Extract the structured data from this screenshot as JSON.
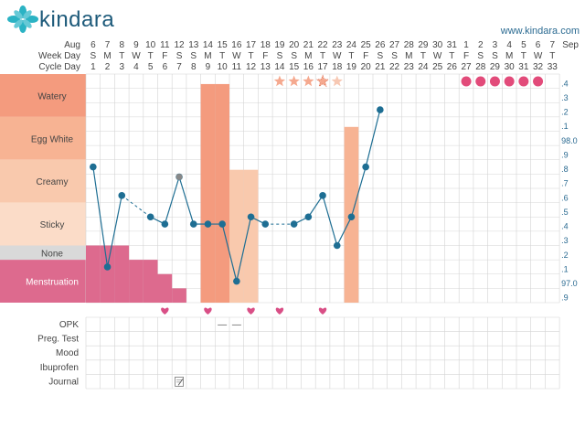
{
  "brand": {
    "name": "kindara",
    "logo_icon": "kindara-flower-icon"
  },
  "site_url": "www.kindara.com",
  "header": {
    "month_start": "Aug",
    "month_end": "Sep",
    "row_labels": [
      "Aug",
      "Week Day",
      "Cycle Day"
    ],
    "days": [
      {
        "date": "6",
        "weekday": "S",
        "cycle_day": "1"
      },
      {
        "date": "7",
        "weekday": "M",
        "cycle_day": "2"
      },
      {
        "date": "8",
        "weekday": "T",
        "cycle_day": "3"
      },
      {
        "date": "9",
        "weekday": "W",
        "cycle_day": "4"
      },
      {
        "date": "10",
        "weekday": "T",
        "cycle_day": "5"
      },
      {
        "date": "11",
        "weekday": "F",
        "cycle_day": "6"
      },
      {
        "date": "12",
        "weekday": "S",
        "cycle_day": "7"
      },
      {
        "date": "13",
        "weekday": "S",
        "cycle_day": "8"
      },
      {
        "date": "14",
        "weekday": "M",
        "cycle_day": "9"
      },
      {
        "date": "15",
        "weekday": "T",
        "cycle_day": "10"
      },
      {
        "date": "16",
        "weekday": "W",
        "cycle_day": "11"
      },
      {
        "date": "17",
        "weekday": "T",
        "cycle_day": "12"
      },
      {
        "date": "18",
        "weekday": "F",
        "cycle_day": "13"
      },
      {
        "date": "19",
        "weekday": "S",
        "cycle_day": "14"
      },
      {
        "date": "20",
        "weekday": "S",
        "cycle_day": "15"
      },
      {
        "date": "21",
        "weekday": "M",
        "cycle_day": "16"
      },
      {
        "date": "22",
        "weekday": "T",
        "cycle_day": "17"
      },
      {
        "date": "23",
        "weekday": "W",
        "cycle_day": "18"
      },
      {
        "date": "24",
        "weekday": "T",
        "cycle_day": "19"
      },
      {
        "date": "25",
        "weekday": "F",
        "cycle_day": "20"
      },
      {
        "date": "26",
        "weekday": "S",
        "cycle_day": "21"
      },
      {
        "date": "27",
        "weekday": "S",
        "cycle_day": "22"
      },
      {
        "date": "28",
        "weekday": "M",
        "cycle_day": "23"
      },
      {
        "date": "29",
        "weekday": "T",
        "cycle_day": "24"
      },
      {
        "date": "30",
        "weekday": "W",
        "cycle_day": "25"
      },
      {
        "date": "31",
        "weekday": "T",
        "cycle_day": "26"
      },
      {
        "date": "1",
        "weekday": "F",
        "cycle_day": "27"
      },
      {
        "date": "2",
        "weekday": "S",
        "cycle_day": "28"
      },
      {
        "date": "3",
        "weekday": "S",
        "cycle_day": "29"
      },
      {
        "date": "4",
        "weekday": "M",
        "cycle_day": "30"
      },
      {
        "date": "5",
        "weekday": "T",
        "cycle_day": "31"
      },
      {
        "date": "6",
        "weekday": "W",
        "cycle_day": "32"
      },
      {
        "date": "7",
        "weekday": "T",
        "cycle_day": "33"
      }
    ]
  },
  "fluid_categories": [
    {
      "key": "watery",
      "label": "Watery",
      "color": "#f49b7e"
    },
    {
      "key": "egg_white",
      "label": "Egg White",
      "color": "#f7b393"
    },
    {
      "key": "creamy",
      "label": "Creamy",
      "color": "#f9c9ad"
    },
    {
      "key": "sticky",
      "label": "Sticky",
      "color": "#fbdcc8"
    },
    {
      "key": "none",
      "label": "None",
      "color": "#d9d9d9"
    },
    {
      "key": "menstruation",
      "label": "Menstruation",
      "color": "#dd6a8e"
    }
  ],
  "temp_axis_labels": [
    ".4",
    ".3",
    ".2",
    ".1",
    "98.0",
    ".9",
    ".8",
    ".7",
    ".6",
    ".5",
    ".4",
    ".3",
    ".2",
    ".1",
    "97.0",
    ".9"
  ],
  "chart_data": {
    "type": "line",
    "xlabel": "Cycle Day",
    "temperature": {
      "values": [
        null,
        97.8,
        97.1,
        97.6,
        null,
        97.45,
        97.4,
        97.73,
        97.4,
        97.4,
        97.4,
        97.0,
        97.45,
        97.4,
        null,
        97.4,
        97.45,
        97.6,
        97.25,
        97.45,
        97.8,
        98.2
      ],
      "dashed_gaps": [
        [
          3,
          5
        ],
        [
          13,
          15
        ]
      ],
      "excluded_points": [
        {
          "cycle_day": 7,
          "value": 97.73
        }
      ],
      "ylim": [
        96.85,
        98.45
      ]
    },
    "cervical_fluid": [
      {
        "cycle_day": 9,
        "level": "watery"
      },
      {
        "cycle_day": 10,
        "level": "watery"
      },
      {
        "cycle_day": 11,
        "level": "creamy"
      },
      {
        "cycle_day": 12,
        "level": "creamy"
      },
      {
        "cycle_day": 19,
        "level": "egg_white"
      }
    ],
    "menstruation_levels": [
      {
        "cycle_day": 1,
        "level": 4
      },
      {
        "cycle_day": 2,
        "level": 4
      },
      {
        "cycle_day": 3,
        "level": 4
      },
      {
        "cycle_day": 4,
        "level": 3
      },
      {
        "cycle_day": 5,
        "level": 3
      },
      {
        "cycle_day": 6,
        "level": 2
      },
      {
        "cycle_day": 7,
        "level": 1
      }
    ],
    "sex_days": [
      6,
      9,
      12,
      14,
      17
    ],
    "fertile_stars": [
      {
        "cycle_day": 14,
        "style": "filled"
      },
      {
        "cycle_day": 15,
        "style": "filled"
      },
      {
        "cycle_day": 16,
        "style": "filled"
      },
      {
        "cycle_day": 17,
        "style": "peak"
      },
      {
        "cycle_day": 18,
        "style": "light"
      }
    ],
    "period_prediction_days": [
      27,
      28,
      29,
      30,
      31,
      32
    ],
    "opk": [
      {
        "cycle_day": 10,
        "result": "negative"
      },
      {
        "cycle_day": 11,
        "result": "negative"
      }
    ],
    "journal_days": [
      7
    ]
  },
  "opk_negative_mark": "—",
  "tracker_rows": [
    "OPK",
    "Preg. Test",
    "Mood",
    "Ibuprofen",
    "Journal"
  ],
  "colors": {
    "grid": "#d4d4d4",
    "line": "#1e6e93",
    "excluded": "#888888",
    "heart": "#d94f86",
    "star": "#f5a98f",
    "star_light": "#f7c8b3",
    "prediction": "#e24b7a",
    "axis_text": "#2a6a91"
  }
}
